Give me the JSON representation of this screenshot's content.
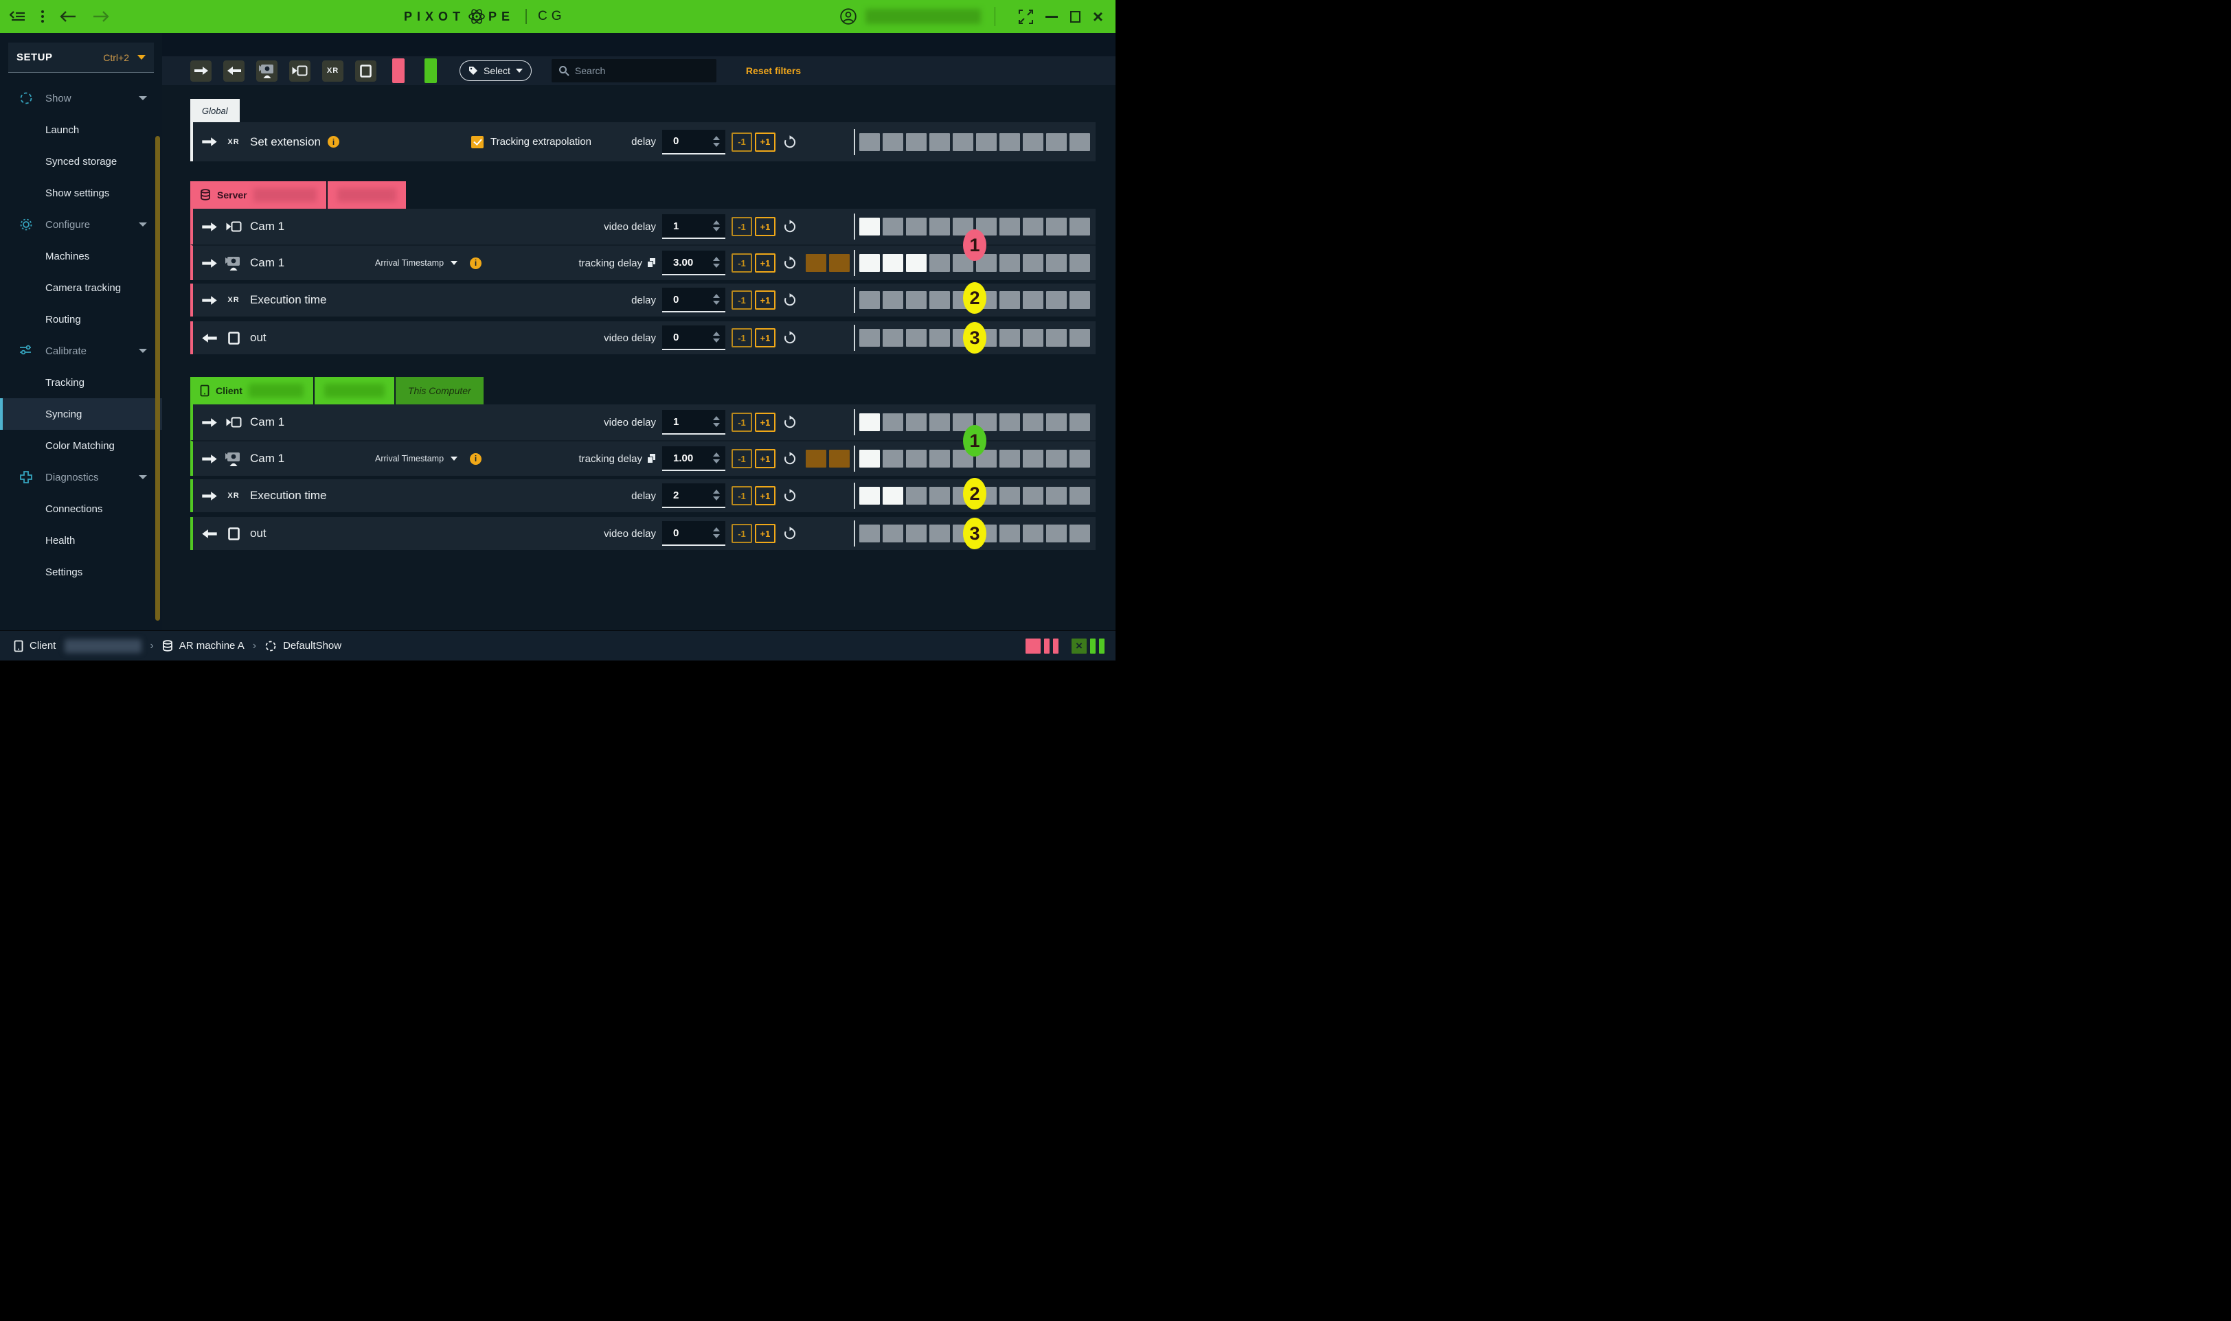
{
  "titlebar": {
    "logo_prefix": "PIXOT",
    "logo_suffix": "PE",
    "product": "CG",
    "user_email_redacted": true
  },
  "colors": {
    "brand_green": "#4ec41f",
    "server_pink": "#f2617d",
    "badge_yellow": "#f4ef06",
    "accent_orange": "#f0a818",
    "negative_delay_brown": "#8a5a10"
  },
  "sidebar": {
    "title": "SETUP",
    "shortcut": "Ctrl+2",
    "groups": [
      {
        "label": "Show",
        "items": [
          "Launch",
          "Synced storage",
          "Show settings"
        ]
      },
      {
        "label": "Configure",
        "items": [
          "Machines",
          "Camera tracking",
          "Routing"
        ]
      },
      {
        "label": "Calibrate",
        "items": [
          "Tracking",
          "Syncing",
          "Color Matching"
        ]
      },
      {
        "label": "Diagnostics",
        "items": [
          "Connections",
          "Health",
          "Settings"
        ]
      }
    ],
    "selected": "Syncing"
  },
  "toolbar": {
    "xr_label": "XR",
    "select_label": "Select",
    "search_placeholder": "Search",
    "reset_filters_label": "Reset filters"
  },
  "buttons": {
    "minus": "-1",
    "plus": "+1"
  },
  "global_section": {
    "tab_label": "Global",
    "row": {
      "type": "XR",
      "name": "Set extension",
      "checkbox_label": "Tracking extrapolation",
      "checkbox_checked": true,
      "delay_label": "delay",
      "value": "0",
      "blocks": {
        "brown": 0,
        "white": 0,
        "gray": 10
      }
    }
  },
  "server_section": {
    "label": "Server",
    "rows": [
      {
        "name": "Cam 1",
        "delay_label": "video delay",
        "value": "1",
        "blocks": {
          "brown": 0,
          "white": 1,
          "gray": 9
        }
      },
      {
        "name": "Cam 1",
        "dropdown": "Arrival Timestamp",
        "delay_label": "tracking delay",
        "value": "3.00",
        "blocks": {
          "brown": 2,
          "white": 3,
          "gray": 7
        }
      },
      {
        "name": "Execution time",
        "type": "XR",
        "delay_label": "delay",
        "value": "0",
        "blocks": {
          "brown": 0,
          "white": 0,
          "gray": 10
        }
      },
      {
        "name": "out",
        "delay_label": "video delay",
        "value": "0",
        "blocks": {
          "brown": 0,
          "white": 0,
          "gray": 10
        }
      }
    ],
    "badges": [
      "1",
      "2",
      "3"
    ]
  },
  "client_section": {
    "label": "Client",
    "this_computer_label": "This Computer",
    "rows": [
      {
        "name": "Cam 1",
        "delay_label": "video delay",
        "value": "1",
        "blocks": {
          "brown": 0,
          "white": 1,
          "gray": 9
        }
      },
      {
        "name": "Cam 1",
        "dropdown": "Arrival Timestamp",
        "delay_label": "tracking delay",
        "value": "1.00",
        "blocks": {
          "brown": 2,
          "white": 1,
          "gray": 9
        }
      },
      {
        "name": "Execution time",
        "type": "XR",
        "delay_label": "delay",
        "value": "2",
        "blocks": {
          "brown": 0,
          "white": 2,
          "gray": 8
        }
      },
      {
        "name": "out",
        "delay_label": "video delay",
        "value": "0",
        "blocks": {
          "brown": 0,
          "white": 0,
          "gray": 10
        }
      }
    ],
    "badges": [
      "1",
      "2",
      "3"
    ]
  },
  "statusbar": {
    "client_label": "Client",
    "machine_label": "AR machine A",
    "show_label": "DefaultShow"
  }
}
